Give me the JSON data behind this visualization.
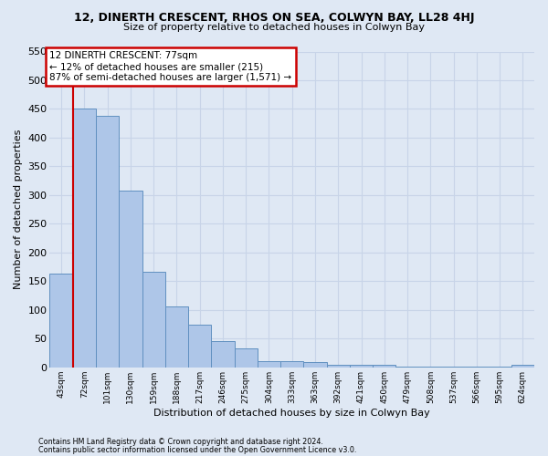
{
  "title1": "12, DINERTH CRESCENT, RHOS ON SEA, COLWYN BAY, LL28 4HJ",
  "title2": "Size of property relative to detached houses in Colwyn Bay",
  "xlabel": "Distribution of detached houses by size in Colwyn Bay",
  "ylabel": "Number of detached properties",
  "categories": [
    "43sqm",
    "72sqm",
    "101sqm",
    "130sqm",
    "159sqm",
    "188sqm",
    "217sqm",
    "246sqm",
    "275sqm",
    "304sqm",
    "333sqm",
    "363sqm",
    "392sqm",
    "421sqm",
    "450sqm",
    "479sqm",
    "508sqm",
    "537sqm",
    "566sqm",
    "595sqm",
    "624sqm"
  ],
  "values": [
    163,
    450,
    438,
    307,
    167,
    106,
    74,
    45,
    33,
    11,
    11,
    9,
    5,
    4,
    4,
    2,
    2,
    2,
    1,
    1,
    5
  ],
  "bar_color": "#aec6e8",
  "bar_edge_color": "#6090c0",
  "property_line_color": "#cc0000",
  "property_line_x": 1,
  "annotation_line1": "12 DINERTH CRESCENT: 77sqm",
  "annotation_line2": "← 12% of detached houses are smaller (215)",
  "annotation_line3": "87% of semi-detached houses are larger (1,571) →",
  "annotation_box_facecolor": "#ffffff",
  "annotation_box_edgecolor": "#cc0000",
  "ylim": [
    0,
    550
  ],
  "yticks": [
    0,
    50,
    100,
    150,
    200,
    250,
    300,
    350,
    400,
    450,
    500,
    550
  ],
  "grid_color": "#c8d4e8",
  "bg_color": "#dfe8f4",
  "footer1": "Contains HM Land Registry data © Crown copyright and database right 2024.",
  "footer2": "Contains public sector information licensed under the Open Government Licence v3.0."
}
